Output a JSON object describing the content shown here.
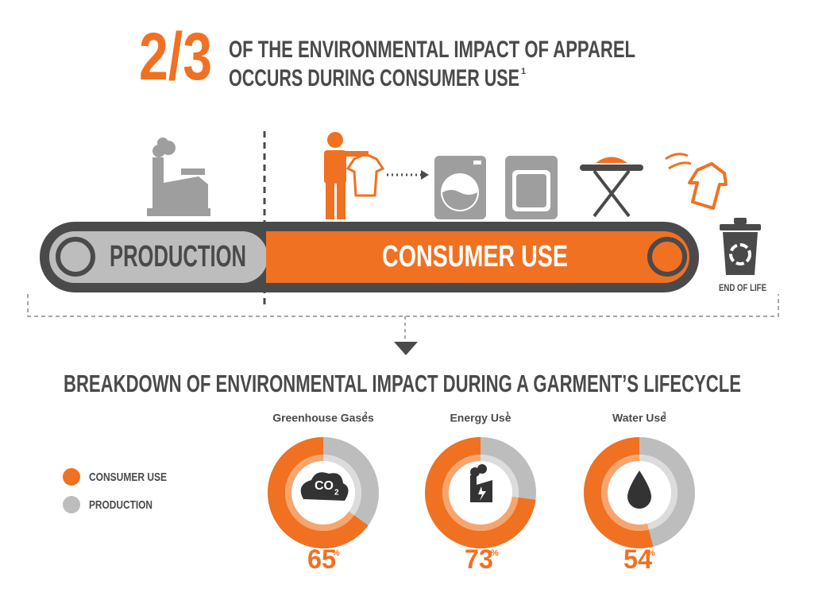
{
  "headline": {
    "fraction": "2/3",
    "line1": "OF THE ENVIRONMENTAL IMPACT OF APPAREL",
    "line2": "OCCURS DURING CONSUMER USE",
    "note": "1"
  },
  "lifecycle": {
    "production": "PRODUCTION",
    "consumer_use": "CONSUMER USE",
    "end_of_life": "END OF LIFE"
  },
  "breakdown": {
    "title": "BREAKDOWN OF ENVIRONMENTAL IMPACT DURING A GARMENT’S LIFECYCLE",
    "legend": [
      "CONSUMER USE",
      "PRODUCTION"
    ],
    "charts": [
      {
        "label": "Greenhouse Gases",
        "note": "2",
        "value": 65,
        "unit": "%",
        "icon_text": "CO",
        "icon_sub": "2"
      },
      {
        "label": "Energy Use",
        "note": "1",
        "value": 73,
        "unit": "%"
      },
      {
        "label": "Water Use",
        "note": "3",
        "value": 54,
        "unit": "%"
      }
    ]
  }
}
